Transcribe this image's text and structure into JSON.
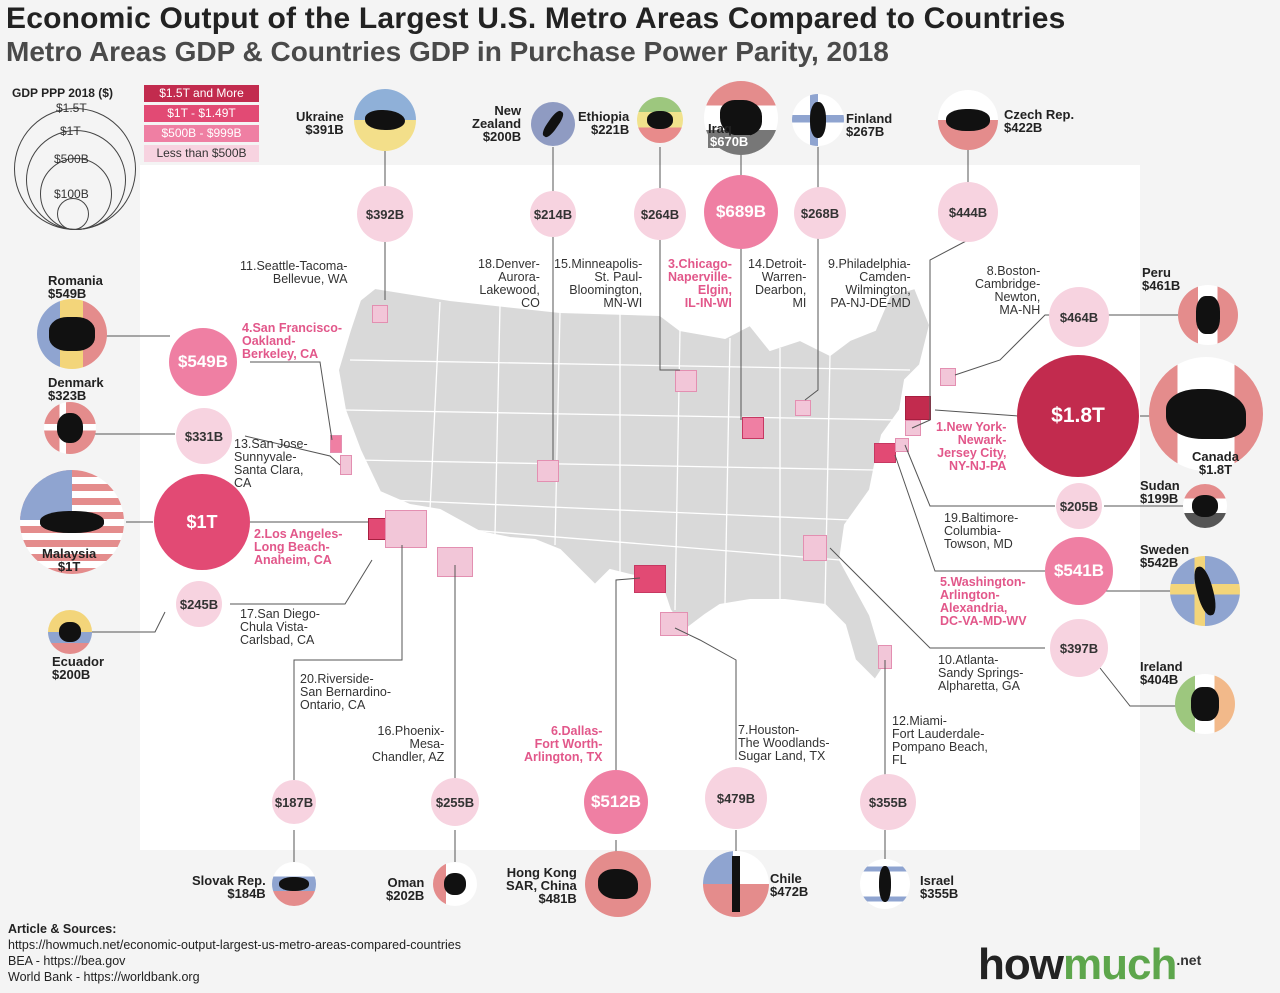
{
  "title": "Economic Output of the Largest U.S. Metro Areas Compared to Countries",
  "subtitle": "Metro Areas GDP & Countries GDP in Purchase Power Parity, 2018",
  "legend": {
    "title": "GDP PPP 2018 ($)",
    "circles": [
      "$1.5T",
      "$1T",
      "$500B",
      "$100B"
    ],
    "keys": [
      {
        "label": "$1.5T and More",
        "color": "#c22b4e"
      },
      {
        "label": "$1T - $1.49T",
        "color": "#e24a74"
      },
      {
        "label": "$500B - $999B",
        "color": "#ef7fa3"
      },
      {
        "label": "Less than $500B",
        "color": "#f7d3e0"
      }
    ]
  },
  "metros": [
    {
      "rank": "1.",
      "name": "New York-\nNewark-\nJersey City,\nNY-NJ-PA",
      "gdp": "$1.8T",
      "country": "Canada",
      "country_gdp": "$1.8T"
    },
    {
      "rank": "2.",
      "name": "Los Angeles-\nLong Beach-\nAnaheim, CA",
      "gdp": "$1T",
      "country": "Malaysia",
      "country_gdp": "$1T"
    },
    {
      "rank": "3.",
      "name": "Chicago-\nNaperville-\nElgin,\nIL-IN-WI",
      "gdp": "$689B",
      "country": "Iraq",
      "country_gdp": "$670B"
    },
    {
      "rank": "4.",
      "name": "San Francisco-\nOakland-\nBerkeley, CA",
      "gdp": "$549B",
      "country": "Romania",
      "country_gdp": "$549B"
    },
    {
      "rank": "5.",
      "name": "Washington-\nArlington-\nAlexandria,\nDC-VA-MD-WV",
      "gdp": "$541B",
      "country": "Sweden",
      "country_gdp": "$542B"
    },
    {
      "rank": "6.",
      "name": "Dallas-\nFort Worth-\nArlington, TX",
      "gdp": "$512B",
      "country": "Hong Kong\nSAR, China",
      "country_gdp": "$481B"
    },
    {
      "rank": "7.",
      "name": "Houston-\nThe Woodlands-\nSugar Land, TX",
      "gdp": "$479B",
      "country": "Chile",
      "country_gdp": "$472B"
    },
    {
      "rank": "8.",
      "name": "Boston-\nCambridge-\nNewton,\nMA-NH",
      "gdp": "$464B",
      "country": "Peru",
      "country_gdp": "$461B"
    },
    {
      "rank": "9.",
      "name": "Philadelphia-\nCamden-\nWilmington,\nPA-NJ-DE-MD",
      "gdp": "$444B",
      "country": "Czech Rep.",
      "country_gdp": "$422B"
    },
    {
      "rank": "10.",
      "name": "Atlanta-\nSandy Springs-\nAlpharetta, GA",
      "gdp": "$397B",
      "country": "Ireland",
      "country_gdp": "$404B"
    },
    {
      "rank": "11.",
      "name": "Seattle-Tacoma-\nBellevue, WA",
      "gdp": "$392B",
      "country": "Ukraine",
      "country_gdp": "$391B"
    },
    {
      "rank": "12.",
      "name": "Miami-\nFort Lauderdale-\nPompano Beach,\nFL",
      "gdp": "$355B",
      "country": "Israel",
      "country_gdp": "$355B"
    },
    {
      "rank": "13.",
      "name": "San Jose-\nSunnyvale-\nSanta Clara,\nCA",
      "gdp": "$331B",
      "country": "Denmark",
      "country_gdp": "$323B"
    },
    {
      "rank": "14.",
      "name": "Detroit-\nWarren-\nDearbon,\nMI",
      "gdp": "$268B",
      "country": "Finland",
      "country_gdp": "$267B"
    },
    {
      "rank": "15.",
      "name": "Minneapolis-\nSt. Paul-\nBloomington,\nMN-WI",
      "gdp": "$264B",
      "country": "Ethiopia",
      "country_gdp": "$221B"
    },
    {
      "rank": "16.",
      "name": "Phoenix-\nMesa-\nChandler, AZ",
      "gdp": "$255B",
      "country": "Oman",
      "country_gdp": "$202B"
    },
    {
      "rank": "17.",
      "name": "San Diego-\nChula Vista-\nCarlsbad, CA",
      "gdp": "$245B",
      "country": "Ecuador",
      "country_gdp": "$200B"
    },
    {
      "rank": "18.",
      "name": "Denver-\nAurora-\nLakewood,\nCO",
      "gdp": "$214B",
      "country": "New\nZealand",
      "country_gdp": "$200B"
    },
    {
      "rank": "19.",
      "name": "Baltimore-\nColumbia-\nTowson, MD",
      "gdp": "$205B",
      "country": "Sudan",
      "country_gdp": "$199B"
    },
    {
      "rank": "20.",
      "name": "Riverside-\nSan Bernardino-\nOntario, CA",
      "gdp": "$187B",
      "country": "Slovak Rep.",
      "country_gdp": "$184B"
    }
  ],
  "sources": {
    "heading": "Article & Sources:",
    "lines": [
      "https://howmuch.net/economic-output-largest-us-metro-areas-compared-countries",
      "BEA - https://bea.gov",
      "World Bank - https://worldbank.org"
    ]
  },
  "logo": {
    "part1": "how",
    "part2": "much",
    "suffix": ".net"
  },
  "icons": {
    "flags": "country-flag-icon",
    "map": "us-map"
  }
}
